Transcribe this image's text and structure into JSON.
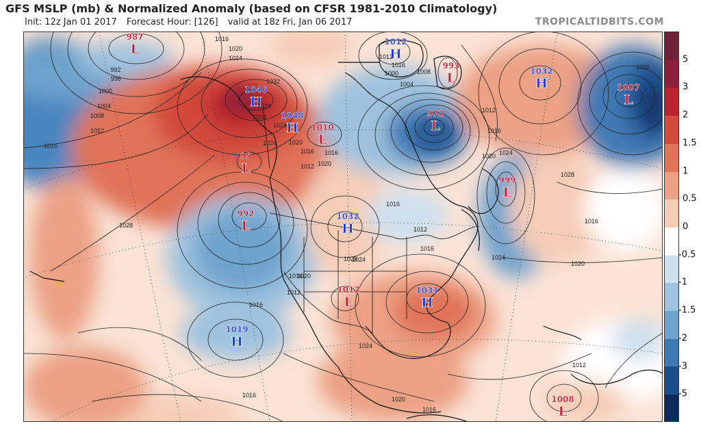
{
  "header": {
    "title": "GFS MSLP (mb) & Normalized Anomaly (based on CFSR 1981-2010 Climatology)",
    "init": "Init: 12z Jan 01 2017",
    "forecast_hour": "Forecast Hour: [126]",
    "valid": "valid at 18z Fri, Jan 06 2017",
    "brand": "TROPICALTIDBITS.COM"
  },
  "colorbar": {
    "ticks": [
      "5",
      "3",
      "2",
      "1.5",
      "1",
      "0.5",
      "0",
      "-0.5",
      "-1",
      "-1.5",
      "-2",
      "-3",
      "-5"
    ],
    "colors": [
      "#6e2139",
      "#8c1f3a",
      "#b8252f",
      "#d24a3a",
      "#e07358",
      "#eca184",
      "#f6cdb7",
      "#ffffff",
      "#cfe0ee",
      "#9fc3df",
      "#6ea3cd",
      "#3f79b4",
      "#1d4e8a",
      "#0e2a5c"
    ]
  },
  "map": {
    "pressure_centers": [
      {
        "type": "L",
        "value": "987"
      },
      {
        "type": "H",
        "value": "1046"
      },
      {
        "type": "H",
        "value": "1048"
      },
      {
        "type": "L",
        "value": "1010"
      },
      {
        "type": "L",
        "value": "95"
      },
      {
        "type": "L",
        "value": "992"
      },
      {
        "type": "H",
        "value": "1032"
      },
      {
        "type": "L",
        "value": "1012"
      },
      {
        "type": "H",
        "value": "1031"
      },
      {
        "type": "H",
        "value": "1019"
      },
      {
        "type": "H",
        "value": "1012"
      },
      {
        "type": "L",
        "value": "993"
      },
      {
        "type": "L",
        "value": "972"
      },
      {
        "type": "H",
        "value": "1032"
      },
      {
        "type": "L",
        "value": "1007"
      },
      {
        "type": "L",
        "value": "999"
      },
      {
        "type": "L",
        "value": "1008"
      }
    ],
    "isobar_labels": [
      "1016",
      "1020",
      "1024",
      "992",
      "996",
      "1000",
      "1004",
      "1008",
      "1012",
      "1016",
      "1032",
      "1028",
      "1024",
      "1020",
      "1016",
      "1012",
      "1008",
      "1028",
      "1024",
      "1016",
      "1020",
      "1024",
      "1028",
      "1016",
      "1012",
      "1020",
      "1016",
      "1000",
      "1004",
      "1012",
      "1016",
      "1008",
      "1016",
      "1012",
      "1016",
      "1012",
      "1016",
      "1020",
      "1024",
      "1028",
      "1016",
      "1020",
      "1024",
      "1024",
      "1016",
      "1020",
      "1012",
      "1016",
      "1020"
    ]
  }
}
